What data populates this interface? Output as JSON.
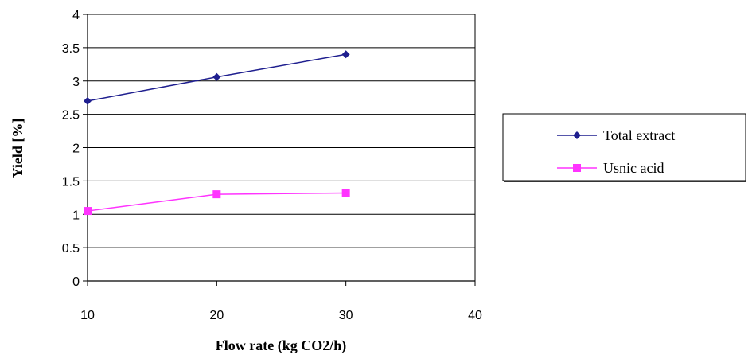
{
  "chart_data": {
    "type": "line",
    "xlabel": "Flow rate (kg CO2/h)",
    "ylabel": "Yield [%]",
    "xlim": [
      10,
      40
    ],
    "ylim": [
      0,
      4
    ],
    "x_ticks": [
      "10",
      "20",
      "30",
      "40"
    ],
    "y_ticks": [
      "0",
      "0.5",
      "1",
      "1.5",
      "2",
      "2.5",
      "3",
      "3.5",
      "4"
    ],
    "grid": true,
    "legend_position": "right",
    "series": [
      {
        "name": "Total extract",
        "color": "#1f1f8f",
        "marker": "diamond",
        "x": [
          10,
          20,
          30
        ],
        "values": [
          2.7,
          3.06,
          3.4
        ]
      },
      {
        "name": "Usnic acid",
        "color": "#ff33ff",
        "marker": "square",
        "x": [
          10,
          20,
          30
        ],
        "values": [
          1.05,
          1.3,
          1.32
        ]
      }
    ]
  }
}
